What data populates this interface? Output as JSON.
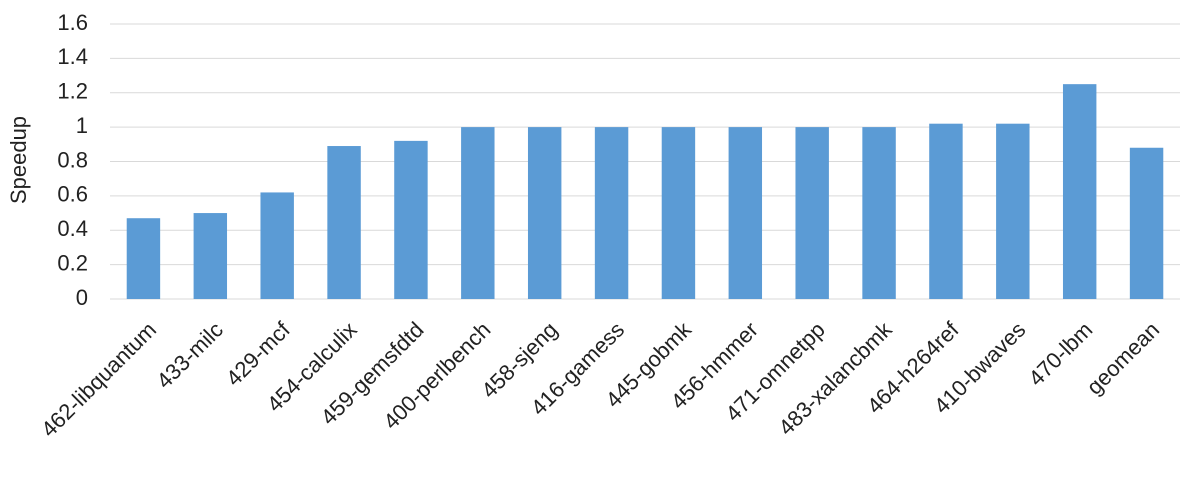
{
  "chart_data": {
    "type": "bar",
    "y_label": "Speedup",
    "categories": [
      "462-libquantum",
      "433-milc",
      "429-mcf",
      "454-calculix",
      "459-gemsfdtd",
      "400-perlbench",
      "458-sjeng",
      "416-gamess",
      "445-gobmk",
      "456-hmmer",
      "471-omnetpp",
      "483-xalancbmk",
      "464-h264ref",
      "410-bwaves",
      "470-lbm",
      "geomean"
    ],
    "values": [
      0.47,
      0.5,
      0.62,
      0.89,
      0.92,
      1.0,
      1.0,
      1.0,
      1.0,
      1.0,
      1.0,
      1.0,
      1.02,
      1.02,
      1.25,
      0.88
    ],
    "color": "#5b9bd5",
    "ylim": [
      0,
      1.6
    ],
    "yticks": [
      0,
      0.2,
      0.4,
      0.6,
      0.8,
      1,
      1.2,
      1.4,
      1.6
    ],
    "grid": true
  }
}
